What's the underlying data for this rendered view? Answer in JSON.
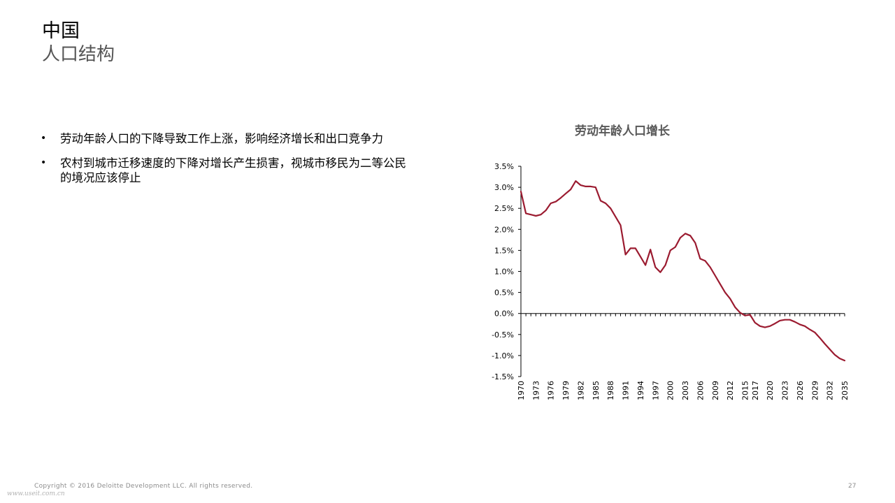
{
  "header": {
    "title": "中国",
    "subtitle": "人口结构"
  },
  "bullets": [
    "劳动年龄人口的下降导致工作上涨，影响经济增长和出口竞争力",
    "农村到城市迁移速度的下降对增长产生损害，视城市移民为二等公民的境况应该停止"
  ],
  "footer": {
    "copyright": "Copyright © 2016 Deloitte Development LLC. All rights reserved.",
    "watermark": "www.useit.com.cn",
    "page_number": "27"
  },
  "chart_data": {
    "type": "line",
    "title": "劳动年龄人口增长",
    "xlabel": "",
    "ylabel": "",
    "ylim": [
      -1.5,
      3.5
    ],
    "yticks": [
      "3.5%",
      "3.0%",
      "2.5%",
      "2.0%",
      "1.5%",
      "1.0%",
      "0.5%",
      "0.0%",
      "-0.5%",
      "-1.0%",
      "-1.5%"
    ],
    "xticks": [
      "1970",
      "1973",
      "1976",
      "1979",
      "1982",
      "1985",
      "1988",
      "1991",
      "1994",
      "1997",
      "2000",
      "2003",
      "2006",
      "2009",
      "2012",
      "2015",
      "2017",
      "2020",
      "2023",
      "2026",
      "2029",
      "2032",
      "2035"
    ],
    "grid": false,
    "line_color": "#9b1b30",
    "series": [
      {
        "x": [
          1970,
          1971,
          1972,
          1973,
          1974,
          1975,
          1976,
          1977,
          1978,
          1979,
          1980,
          1981,
          1982,
          1983,
          1984,
          1985,
          1986,
          1987,
          1988,
          1989,
          1990,
          1991,
          1992,
          1993,
          1994,
          1995,
          1996,
          1997,
          1998,
          1999,
          2000,
          2001,
          2002,
          2003,
          2004,
          2005,
          2006,
          2007,
          2008,
          2009,
          2010,
          2011,
          2012,
          2013,
          2014,
          2015,
          2016,
          2017,
          2018,
          2019,
          2020,
          2021,
          2022,
          2023,
          2024,
          2025,
          2026,
          2027,
          2028,
          2029,
          2030,
          2031,
          2032,
          2033,
          2034,
          2035
        ],
        "y": [
          2.9,
          2.38,
          2.35,
          2.32,
          2.35,
          2.45,
          2.62,
          2.66,
          2.75,
          2.85,
          2.95,
          3.15,
          3.05,
          3.02,
          3.02,
          3.0,
          2.68,
          2.62,
          2.5,
          2.3,
          2.1,
          1.4,
          1.55,
          1.55,
          1.35,
          1.15,
          1.52,
          1.1,
          0.98,
          1.15,
          1.5,
          1.58,
          1.8,
          1.9,
          1.85,
          1.68,
          1.3,
          1.25,
          1.1,
          0.9,
          0.7,
          0.5,
          0.35,
          0.15,
          0.02,
          -0.05,
          -0.03,
          -0.22,
          -0.3,
          -0.33,
          -0.3,
          -0.24,
          -0.17,
          -0.15,
          -0.15,
          -0.2,
          -0.26,
          -0.3,
          -0.38,
          -0.45,
          -0.58,
          -0.72,
          -0.85,
          -0.98,
          -1.07,
          -1.12
        ]
      }
    ]
  }
}
